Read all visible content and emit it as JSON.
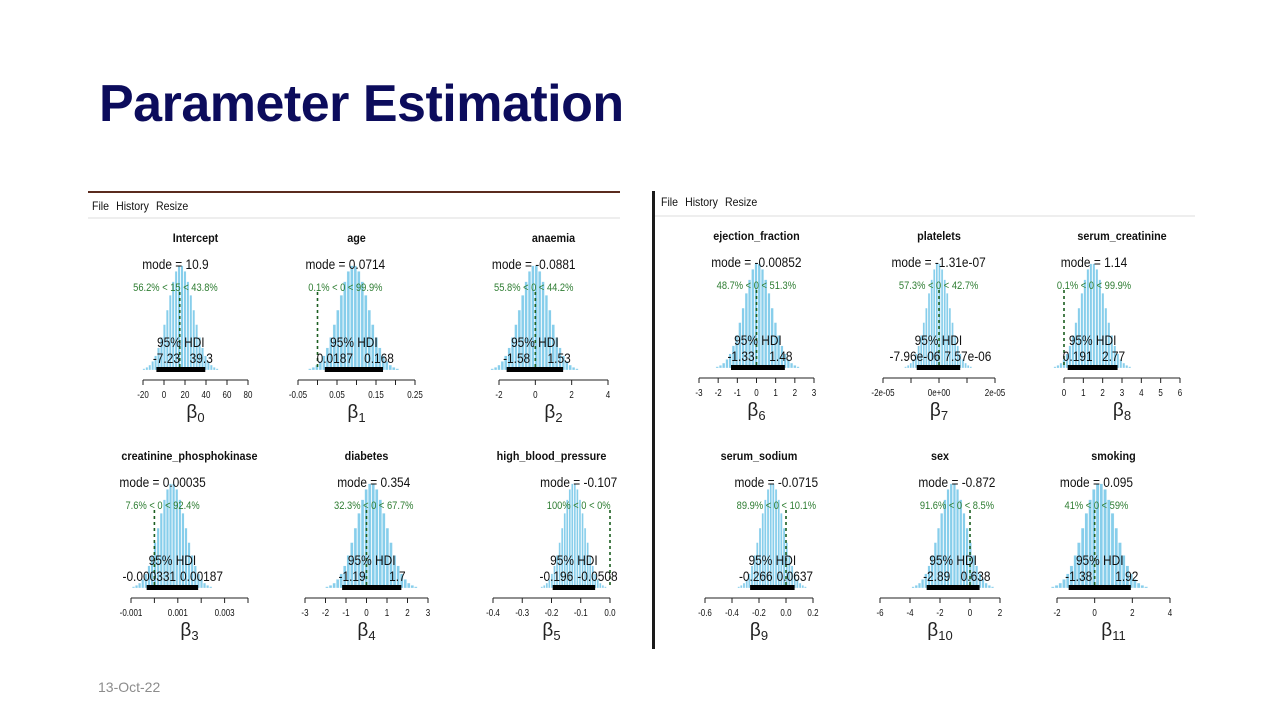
{
  "slide": {
    "title": "Parameter Estimation",
    "date": "13-Oct-22"
  },
  "windows": [
    {
      "menu": [
        "File",
        "History",
        "Resize"
      ]
    },
    {
      "menu": [
        "File",
        "History",
        "Resize"
      ]
    }
  ],
  "colors": {
    "title": "#0c0c5c",
    "bars": "#87ceeb",
    "comp_text": "#2e7d32",
    "hdi_bar": "#000000"
  },
  "chart_data": [
    {
      "type": "histogram",
      "title": "Intercept",
      "mode_label": "mode = 10.9",
      "mode": 10.9,
      "comp_label": "56.2% < 15 < 43.8%",
      "comp_value": 15,
      "hdi_label": "95% HDI",
      "hdi": [
        -7.23,
        39.3
      ],
      "hdi_lo_label": "-7.23",
      "hdi_hi_label": "39.3",
      "xlabel": "β",
      "xsub": "0",
      "xlim": [
        -20,
        80
      ],
      "ticks": [
        {
          "v": -20,
          "label": "-20"
        },
        {
          "v": 0,
          "label": "0"
        },
        {
          "v": 20,
          "label": "20"
        },
        {
          "v": 40,
          "label": "40"
        },
        {
          "v": 60,
          "label": "60"
        },
        {
          "v": 80,
          "label": "80"
        }
      ]
    },
    {
      "type": "histogram",
      "title": "age",
      "mode_label": "mode = 0.0714",
      "mode": 0.0714,
      "comp_label": "0.1% < 0 < 99.9%",
      "comp_value": 0,
      "hdi_label": "95% HDI",
      "hdi": [
        0.0187,
        0.168
      ],
      "hdi_lo_label": "0.0187",
      "hdi_hi_label": "0.168",
      "xlabel": "β",
      "xsub": "1",
      "xlim": [
        -0.05,
        0.25
      ],
      "ticks": [
        {
          "v": -0.05,
          "label": "-0.05"
        },
        {
          "v": 0,
          "label": ""
        },
        {
          "v": 0.05,
          "label": "0.05"
        },
        {
          "v": 0.1,
          "label": ""
        },
        {
          "v": 0.15,
          "label": "0.15"
        },
        {
          "v": 0.2,
          "label": ""
        },
        {
          "v": 0.25,
          "label": "0.25"
        }
      ]
    },
    {
      "type": "histogram",
      "title": "anaemia",
      "mode_label": "mode = -0.0881",
      "mode": -0.0881,
      "comp_label": "55.8% < 0 < 44.2%",
      "comp_value": 0,
      "hdi_label": "95% HDI",
      "hdi": [
        -1.58,
        1.53
      ],
      "hdi_lo_label": "-1.58",
      "hdi_hi_label": "1.53",
      "xlabel": "β",
      "xsub": "2",
      "xlim": [
        -2,
        4
      ],
      "ticks": [
        {
          "v": -2,
          "label": "-2"
        },
        {
          "v": 0,
          "label": "0"
        },
        {
          "v": 2,
          "label": "2"
        },
        {
          "v": 4,
          "label": "4"
        }
      ]
    },
    {
      "type": "histogram",
      "title": "creatinine_phosphokinase",
      "mode_label": "mode = 0.00035",
      "mode": 0.00035,
      "comp_label": "7.6% < 0 < 92.4%",
      "comp_value": 0,
      "hdi_label": "95% HDI",
      "hdi": [
        -0.000331,
        0.00187
      ],
      "hdi_lo_label": "-0.000331",
      "hdi_hi_label": "0.00187",
      "xlabel": "β",
      "xsub": "3",
      "xlim": [
        -0.001,
        0.004
      ],
      "ticks": [
        {
          "v": -0.001,
          "label": "-0.001"
        },
        {
          "v": 0,
          "label": ""
        },
        {
          "v": 0.001,
          "label": "0.001"
        },
        {
          "v": 0.002,
          "label": ""
        },
        {
          "v": 0.003,
          "label": "0.003"
        },
        {
          "v": 0.004,
          "label": ""
        }
      ]
    },
    {
      "type": "histogram",
      "title": "diabetes",
      "mode_label": "mode = 0.354",
      "mode": 0.354,
      "comp_label": "32.3% < 0 < 67.7%",
      "comp_value": 0,
      "hdi_label": "95% HDI",
      "hdi": [
        -1.19,
        1.7
      ],
      "hdi_lo_label": "-1.19",
      "hdi_hi_label": "1.7",
      "xlabel": "β",
      "xsub": "4",
      "xlim": [
        -3,
        3
      ],
      "ticks": [
        {
          "v": -3,
          "label": "-3"
        },
        {
          "v": -2,
          "label": "-2"
        },
        {
          "v": -1,
          "label": "-1"
        },
        {
          "v": 0,
          "label": "0"
        },
        {
          "v": 1,
          "label": "1"
        },
        {
          "v": 2,
          "label": "2"
        },
        {
          "v": 3,
          "label": "3"
        }
      ]
    },
    {
      "type": "histogram",
      "title": "high_blood_pressure",
      "mode_label": "mode = -0.107",
      "mode": -0.107,
      "comp_label": "100% < 0 < 0%",
      "comp_value": 0,
      "hdi_label": "95% HDI",
      "hdi": [
        -0.196,
        -0.0508
      ],
      "hdi_lo_label": "-0.196",
      "hdi_hi_label": "-0.0508",
      "xlabel": "β",
      "xsub": "5",
      "xlim": [
        -0.4,
        0.0
      ],
      "ticks": [
        {
          "v": -0.4,
          "label": "-0.4"
        },
        {
          "v": -0.3,
          "label": "-0.3"
        },
        {
          "v": -0.2,
          "label": "-0.2"
        },
        {
          "v": -0.1,
          "label": "-0.1"
        },
        {
          "v": 0,
          "label": "0.0"
        }
      ]
    },
    {
      "type": "histogram",
      "title": "ejection_fraction",
      "mode_label": "mode = -0.00852",
      "mode": -0.00852,
      "comp_label": "48.7% < 0 < 51.3%",
      "comp_value": 0,
      "hdi_label": "95% HDI",
      "hdi": [
        -1.33,
        1.48
      ],
      "hdi_lo_label": "-1.33",
      "hdi_hi_label": "1.48",
      "xlabel": "β",
      "xsub": "6",
      "xlim": [
        -3,
        3
      ],
      "ticks": [
        {
          "v": -3,
          "label": "-3"
        },
        {
          "v": -2,
          "label": "-2"
        },
        {
          "v": -1,
          "label": "-1"
        },
        {
          "v": 0,
          "label": "0"
        },
        {
          "v": 1,
          "label": "1"
        },
        {
          "v": 2,
          "label": "2"
        },
        {
          "v": 3,
          "label": "3"
        }
      ]
    },
    {
      "type": "histogram",
      "title": "platelets",
      "mode_label": "mode = -1.31e-07",
      "mode": -1.31e-07,
      "comp_label": "57.3% < 0 < 42.7%",
      "comp_value": 0,
      "hdi_label": "95% HDI",
      "hdi": [
        -7.96e-06,
        7.57e-06
      ],
      "hdi_lo_label": "-7.96e-06",
      "hdi_hi_label": "7.57e-06",
      "xlabel": "β",
      "xsub": "7",
      "xlim": [
        -2e-05,
        2e-05
      ],
      "ticks": [
        {
          "v": -2e-05,
          "label": "-2e-05"
        },
        {
          "v": -1e-05,
          "label": ""
        },
        {
          "v": 0,
          "label": "0e+00"
        },
        {
          "v": 1e-05,
          "label": ""
        },
        {
          "v": 2e-05,
          "label": "2e-05"
        }
      ]
    },
    {
      "type": "histogram",
      "title": "serum_creatinine",
      "mode_label": "mode = 1.14",
      "mode": 1.14,
      "comp_label": "0.1% < 0 < 99.9%",
      "comp_value": 0,
      "hdi_label": "95% HDI",
      "hdi": [
        0.191,
        2.77
      ],
      "hdi_lo_label": "0.191",
      "hdi_hi_label": "2.77",
      "xlabel": "β",
      "xsub": "8",
      "xlim": [
        0,
        6
      ],
      "ticks": [
        {
          "v": 0,
          "label": "0"
        },
        {
          "v": 1,
          "label": "1"
        },
        {
          "v": 2,
          "label": "2"
        },
        {
          "v": 3,
          "label": "3"
        },
        {
          "v": 4,
          "label": "4"
        },
        {
          "v": 5,
          "label": "5"
        },
        {
          "v": 6,
          "label": "6"
        }
      ]
    },
    {
      "type": "histogram",
      "title": "serum_sodium",
      "mode_label": "mode = -0.0715",
      "mode": -0.0715,
      "comp_label": "89.9% < 0 < 10.1%",
      "comp_value": 0,
      "hdi_label": "95% HDI",
      "hdi": [
        -0.266,
        0.0637
      ],
      "hdi_lo_label": "-0.266",
      "hdi_hi_label": "0.0637",
      "xlabel": "β",
      "xsub": "9",
      "xlim": [
        -0.6,
        0.2
      ],
      "ticks": [
        {
          "v": -0.6,
          "label": "-0.6"
        },
        {
          "v": -0.4,
          "label": "-0.4"
        },
        {
          "v": -0.2,
          "label": "-0.2"
        },
        {
          "v": 0,
          "label": "0.0"
        },
        {
          "v": 0.2,
          "label": "0.2"
        }
      ]
    },
    {
      "type": "histogram",
      "title": "sex",
      "mode_label": "mode = -0.872",
      "mode": -0.872,
      "comp_label": "91.6% < 0 < 8.5%",
      "comp_value": 0,
      "hdi_label": "95% HDI",
      "hdi": [
        -2.89,
        0.638
      ],
      "hdi_lo_label": "-2.89",
      "hdi_hi_label": "0.638",
      "xlabel": "β",
      "xsub": "10",
      "xlim": [
        -6,
        2
      ],
      "ticks": [
        {
          "v": -6,
          "label": "-6"
        },
        {
          "v": -4,
          "label": "-4"
        },
        {
          "v": -2,
          "label": "-2"
        },
        {
          "v": 0,
          "label": "0"
        },
        {
          "v": 2,
          "label": "2"
        }
      ]
    },
    {
      "type": "histogram",
      "title": "smoking",
      "mode_label": "mode = 0.095",
      "mode": 0.095,
      "comp_label": "41% < 0 < 59%",
      "comp_value": 0,
      "hdi_label": "95% HDI",
      "hdi": [
        -1.38,
        1.92
      ],
      "hdi_lo_label": "-1.38",
      "hdi_hi_label": "1.92",
      "xlabel": "β",
      "xsub": "11",
      "xlim": [
        -2,
        4
      ],
      "ticks": [
        {
          "v": -2,
          "label": "-2"
        },
        {
          "v": 0,
          "label": "0"
        },
        {
          "v": 2,
          "label": "2"
        },
        {
          "v": 4,
          "label": "4"
        }
      ]
    }
  ]
}
